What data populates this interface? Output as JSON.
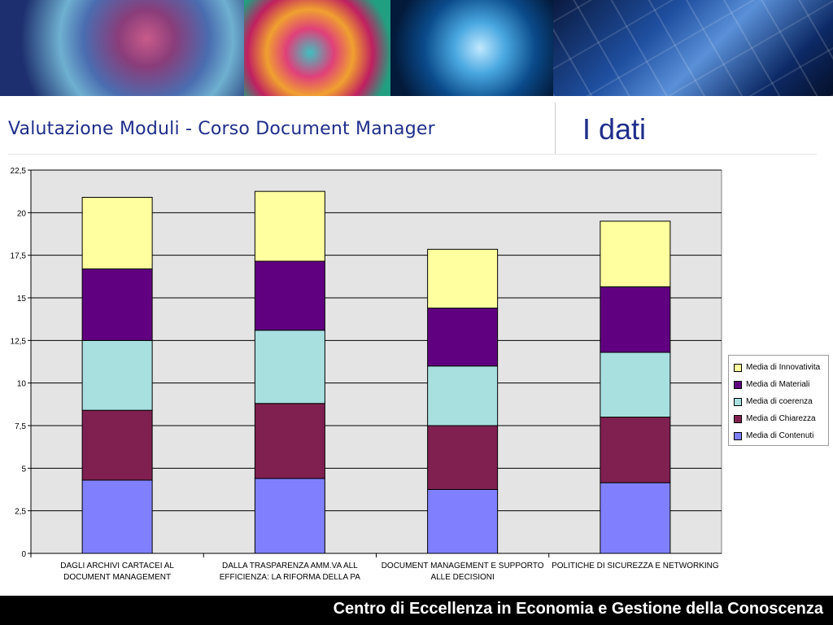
{
  "header": {
    "subtitle": "Valutazione Moduli - Corso Document Manager",
    "title": "I dati"
  },
  "footer": {
    "text": "Centro di Eccellenza in Economia e Gestione della Conoscenza"
  },
  "chart_data": {
    "type": "bar",
    "stacked": true,
    "ylim": [
      0,
      22.5
    ],
    "yticks": [
      "0",
      "2,5",
      "5",
      "7,5",
      "10",
      "12,5",
      "15",
      "17,5",
      "20",
      "22,5"
    ],
    "ytick_values": [
      0,
      2.5,
      5,
      7.5,
      10,
      12.5,
      15,
      17.5,
      20,
      22.5
    ],
    "grid": true,
    "legend_position": "right",
    "categories": [
      [
        "DAGLI ARCHIVI CARTACEI AL",
        "DOCUMENT MANAGEMENT"
      ],
      [
        "DALLA TRASPARENZA AMM.VA ALL",
        "EFFICIENZA: LA RIFORMA DELLA PA"
      ],
      [
        "DOCUMENT MANAGEMENT E SUPPORTO",
        "ALLE DECISIONI"
      ],
      [
        "POLITICHE DI SICUREZZA E NETWORKING"
      ]
    ],
    "series": [
      {
        "name": "Media di Contenuti",
        "color": "#8080ff",
        "values": [
          4.3,
          4.4,
          3.75,
          4.15
        ]
      },
      {
        "name": "Media di Chiarezza",
        "color": "#802050",
        "values": [
          4.1,
          4.4,
          3.75,
          3.85
        ]
      },
      {
        "name": "Media di coerenza",
        "color": "#a8e0e0",
        "values": [
          4.1,
          4.3,
          3.5,
          3.8
        ]
      },
      {
        "name": "Media di Materiali",
        "color": "#600080",
        "values": [
          4.2,
          4.05,
          3.4,
          3.85
        ]
      },
      {
        "name": "Media di Innovativita",
        "color": "#ffffa0",
        "values": [
          4.2,
          4.1,
          3.45,
          3.85
        ]
      }
    ],
    "legend_order": [
      4,
      3,
      2,
      1,
      0
    ]
  }
}
